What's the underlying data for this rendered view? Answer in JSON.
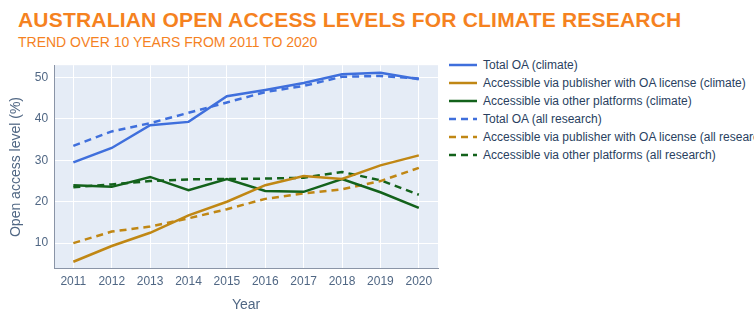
{
  "chart_data": {
    "type": "line",
    "title": "AUSTRALIAN OPEN ACCESS LEVELS FOR CLIMATE RESEARCH",
    "subtitle": "TREND OVER 10 YEARS FROM 2011 TO 2020",
    "x_label": "Year",
    "y_label": "Open access level (%)",
    "categories": [
      "2011",
      "2012",
      "2013",
      "2014",
      "2015",
      "2016",
      "2017",
      "2018",
      "2019",
      "2020"
    ],
    "series": [
      {
        "name": "Total OA (climate)",
        "color": "#3f6fdc",
        "line_style": "solid",
        "values": [
          29.5,
          33,
          38.5,
          39.3,
          45.5,
          47,
          48.7,
          50.8,
          51.2,
          49.6
        ]
      },
      {
        "name": "Accessible via publisher with OA license (climate)",
        "color": "#c08714",
        "line_style": "solid",
        "values": [
          5.5,
          9.3,
          12.5,
          16.7,
          20,
          24,
          26.2,
          25.5,
          28.8,
          31.2
        ]
      },
      {
        "name": "Accessible via other platforms (climate)",
        "color": "#13621b",
        "line_style": "solid",
        "values": [
          24,
          23.6,
          26,
          22.8,
          25.5,
          22.6,
          22.4,
          25.5,
          22.3,
          18.5
        ]
      },
      {
        "name": "Total OA (all research)",
        "color": "#3f6fdc",
        "line_style": "dashed",
        "values": [
          33.5,
          37,
          39,
          41.5,
          44,
          46.5,
          48,
          50.2,
          50.4,
          49.8
        ]
      },
      {
        "name": "Accessible via publisher with OA license (all research)",
        "color": "#c08714",
        "line_style": "dashed",
        "values": [
          10,
          12.8,
          14,
          16,
          18.2,
          20.7,
          22,
          23,
          25,
          28.2
        ]
      },
      {
        "name": "Accessible via other platforms (all research)",
        "color": "#13621b",
        "line_style": "dashed",
        "values": [
          23.5,
          24.2,
          25,
          25.4,
          25.5,
          25.6,
          25.8,
          27.2,
          25.2,
          21.7
        ]
      }
    ],
    "ylim": [
      3.8,
      53
    ],
    "yticks": [
      10,
      20,
      30,
      40,
      50
    ],
    "grid": true,
    "legend": "right"
  }
}
